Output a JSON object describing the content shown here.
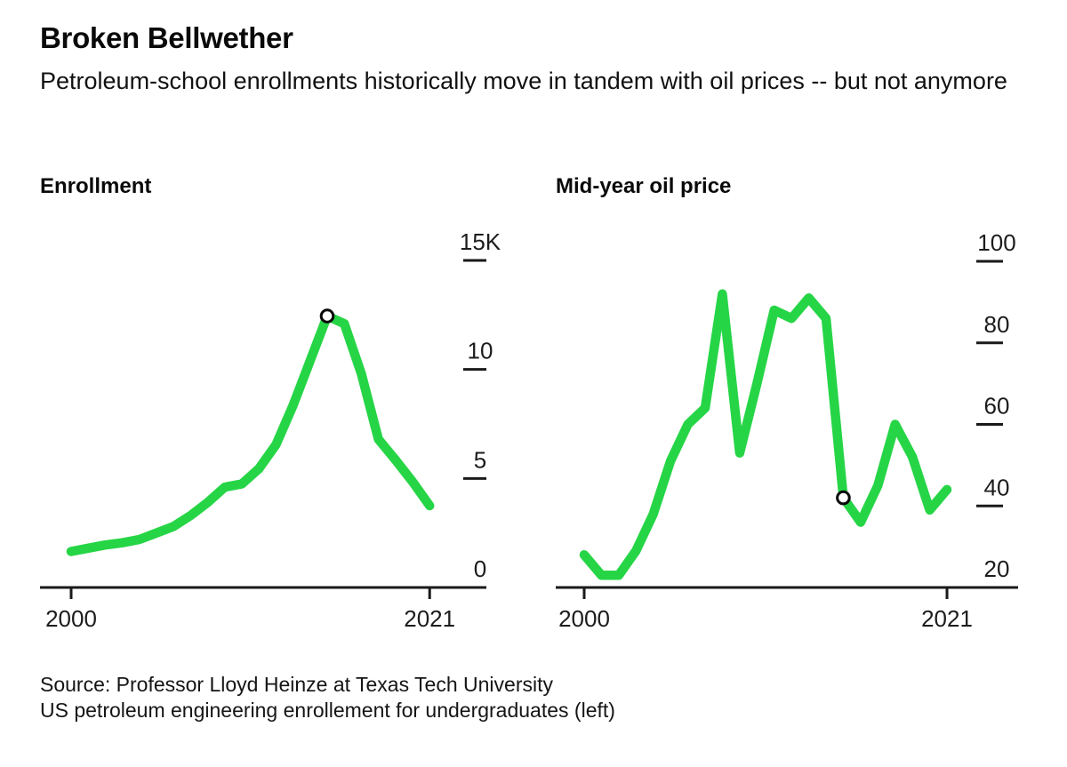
{
  "header": {
    "title": "Broken Bellwether",
    "subtitle": "Petroleum-school enrollments historically move in tandem with oil prices -- but not anymore"
  },
  "source": {
    "line1": "Source: Professor Lloyd Heinze at Texas Tech University",
    "line2": "US petroleum engineering enrollement for undergraduates (left)"
  },
  "colors": {
    "line": "#26d546",
    "axis": "#1a1a1a",
    "marker_stroke": "#0a0a0a",
    "marker_fill": "#ffffff",
    "text": "#111111"
  },
  "chart_data": [
    {
      "type": "line",
      "title": "Enrollment",
      "xlabel": "",
      "ylabel": "",
      "x_range": [
        2000,
        2021
      ],
      "x_ticks": [
        2000,
        2021
      ],
      "ylim": [
        0,
        15
      ],
      "y_ticks": [
        {
          "value": 15,
          "label": "15K"
        },
        {
          "value": 10,
          "label": "10"
        },
        {
          "value": 5,
          "label": "5"
        },
        {
          "value": 0,
          "label": "0"
        }
      ],
      "grid": false,
      "legend": "none",
      "x": [
        2000,
        2001,
        2002,
        2003,
        2004,
        2005,
        2006,
        2007,
        2008,
        2009,
        2010,
        2011,
        2012,
        2013,
        2014,
        2015,
        2016,
        2017,
        2018,
        2019,
        2020,
        2021
      ],
      "values": [
        1.65,
        1.8,
        1.95,
        2.05,
        2.2,
        2.5,
        2.8,
        3.3,
        3.9,
        4.6,
        4.75,
        5.45,
        6.55,
        8.35,
        10.4,
        12.45,
        12.1,
        9.8,
        6.8,
        5.85,
        4.85,
        3.75
      ],
      "values_unit": "thousands (K)",
      "marker": {
        "x": 2015,
        "value": 12.45,
        "style": "open-circle"
      }
    },
    {
      "type": "line",
      "title": "Mid-year oil price",
      "xlabel": "",
      "ylabel": "",
      "x_range": [
        2000,
        2021
      ],
      "x_ticks": [
        2000,
        2021
      ],
      "ylim": [
        20,
        100
      ],
      "y_ticks": [
        {
          "value": 100,
          "label": "100"
        },
        {
          "value": 80,
          "label": "80"
        },
        {
          "value": 60,
          "label": "60"
        },
        {
          "value": 40,
          "label": "40"
        },
        {
          "value": 20,
          "label": "20"
        }
      ],
      "grid": false,
      "legend": "none",
      "x": [
        2000,
        2001,
        2002,
        2003,
        2004,
        2005,
        2006,
        2007,
        2008,
        2009,
        2010,
        2011,
        2012,
        2013,
        2014,
        2015,
        2016,
        2017,
        2018,
        2019,
        2020,
        2021
      ],
      "values": [
        28,
        23,
        23,
        29,
        38,
        51,
        60,
        64,
        92,
        53,
        70,
        88,
        86,
        91,
        86,
        42,
        36,
        45,
        60,
        52,
        39,
        44
      ],
      "values_unit": "price",
      "marker": {
        "x": 2015,
        "value": 42,
        "style": "open-circle"
      }
    }
  ]
}
